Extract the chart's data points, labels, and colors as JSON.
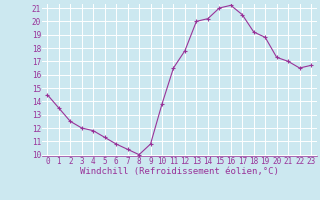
{
  "x": [
    0,
    1,
    2,
    3,
    4,
    5,
    6,
    7,
    8,
    9,
    10,
    11,
    12,
    13,
    14,
    15,
    16,
    17,
    18,
    19,
    20,
    21,
    22,
    23
  ],
  "y": [
    14.5,
    13.5,
    12.5,
    12.0,
    11.8,
    11.3,
    10.8,
    10.4,
    10.0,
    10.8,
    13.8,
    16.5,
    17.8,
    20.0,
    20.2,
    21.0,
    21.2,
    20.5,
    19.2,
    18.8,
    17.3,
    17.0,
    16.5,
    16.7
  ],
  "line_color": "#993399",
  "marker": "+",
  "marker_color": "#993399",
  "bg_color": "#cce8f0",
  "grid_color": "#aaddee",
  "xlabel": "Windchill (Refroidissement éolien,°C)",
  "xlabel_color": "#993399",
  "tick_color": "#993399",
  "ylim": [
    10,
    21
  ],
  "xlim": [
    -0.5,
    23.5
  ],
  "yticks": [
    10,
    11,
    12,
    13,
    14,
    15,
    16,
    17,
    18,
    19,
    20,
    21
  ],
  "xticks": [
    0,
    1,
    2,
    3,
    4,
    5,
    6,
    7,
    8,
    9,
    10,
    11,
    12,
    13,
    14,
    15,
    16,
    17,
    18,
    19,
    20,
    21,
    22,
    23
  ],
  "tick_fontsize": 5.5,
  "xlabel_fontsize": 6.5,
  "line_width": 0.8,
  "marker_size": 3
}
